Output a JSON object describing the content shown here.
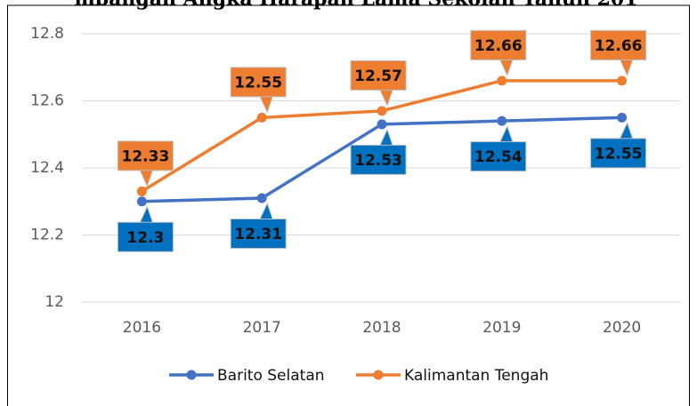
{
  "chart_data": {
    "type": "line",
    "title": "mbangan Angka Harapan Lama Sekolah Tahun 201",
    "categories": [
      "2016",
      "2017",
      "2018",
      "2019",
      "2020"
    ],
    "series": [
      {
        "name": "Barito Selatan",
        "color": "#4472c4",
        "label_color": "#0070c0",
        "values": [
          12.3,
          12.31,
          12.53,
          12.54,
          12.55
        ]
      },
      {
        "name": "Kalimantan Tengah",
        "color": "#ed7d31",
        "label_color": "#ed7d31",
        "values": [
          12.33,
          12.55,
          12.57,
          12.66,
          12.66
        ]
      }
    ],
    "ylim": [
      12,
      12.8
    ],
    "yticks": [
      12,
      12.2,
      12.4,
      12.6,
      12.8
    ],
    "grid": true,
    "legend": "bottom"
  }
}
